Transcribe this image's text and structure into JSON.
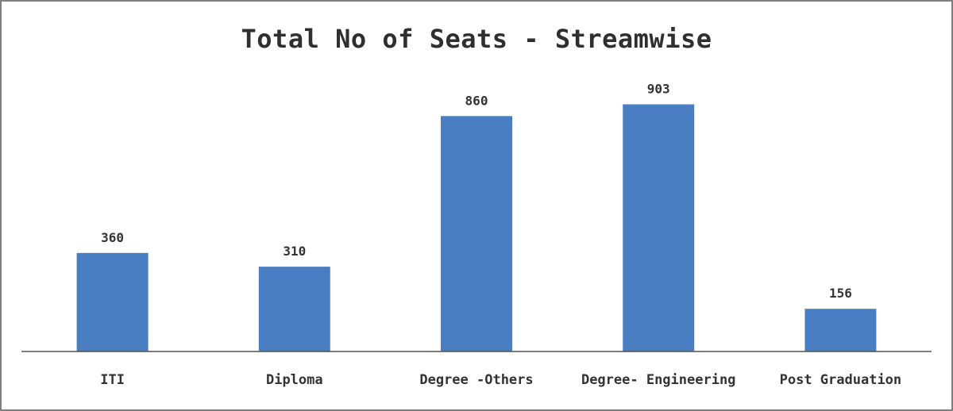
{
  "chart_data": {
    "type": "bar",
    "title": "Total No of Seats - Streamwise",
    "xlabel": "",
    "ylabel": "",
    "categories": [
      "ITI",
      "Diploma",
      "Degree -Others",
      "Degree- Engineering",
      "Post Graduation"
    ],
    "values": [
      360,
      310,
      860,
      903,
      156
    ],
    "ylim": [
      0,
      1000
    ],
    "grid": false,
    "legend": "none",
    "data_labels": true,
    "bar_color": "#4a7ec2",
    "axis_color": "#555555"
  }
}
